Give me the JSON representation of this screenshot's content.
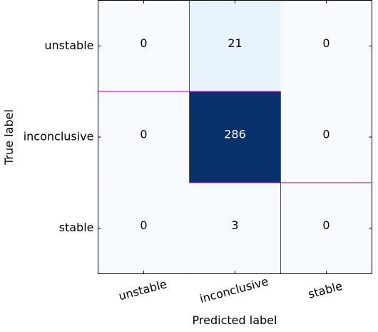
{
  "chart_data": {
    "type": "heatmap",
    "title": "",
    "xlabel": "Predicted label",
    "ylabel": "True label",
    "x_categories": [
      "unstable",
      "inconclusive",
      "stable"
    ],
    "y_categories": [
      "unstable",
      "inconclusive",
      "stable"
    ],
    "values": [
      [
        0,
        21,
        0
      ],
      [
        0,
        286,
        0
      ],
      [
        0,
        3,
        0
      ]
    ],
    "colormap": "Blues",
    "vmin": 0,
    "vmax": 286,
    "grid_line_color": "#cc00cc",
    "text_color_dark": "#000000",
    "text_color_light": "#ffffff"
  }
}
